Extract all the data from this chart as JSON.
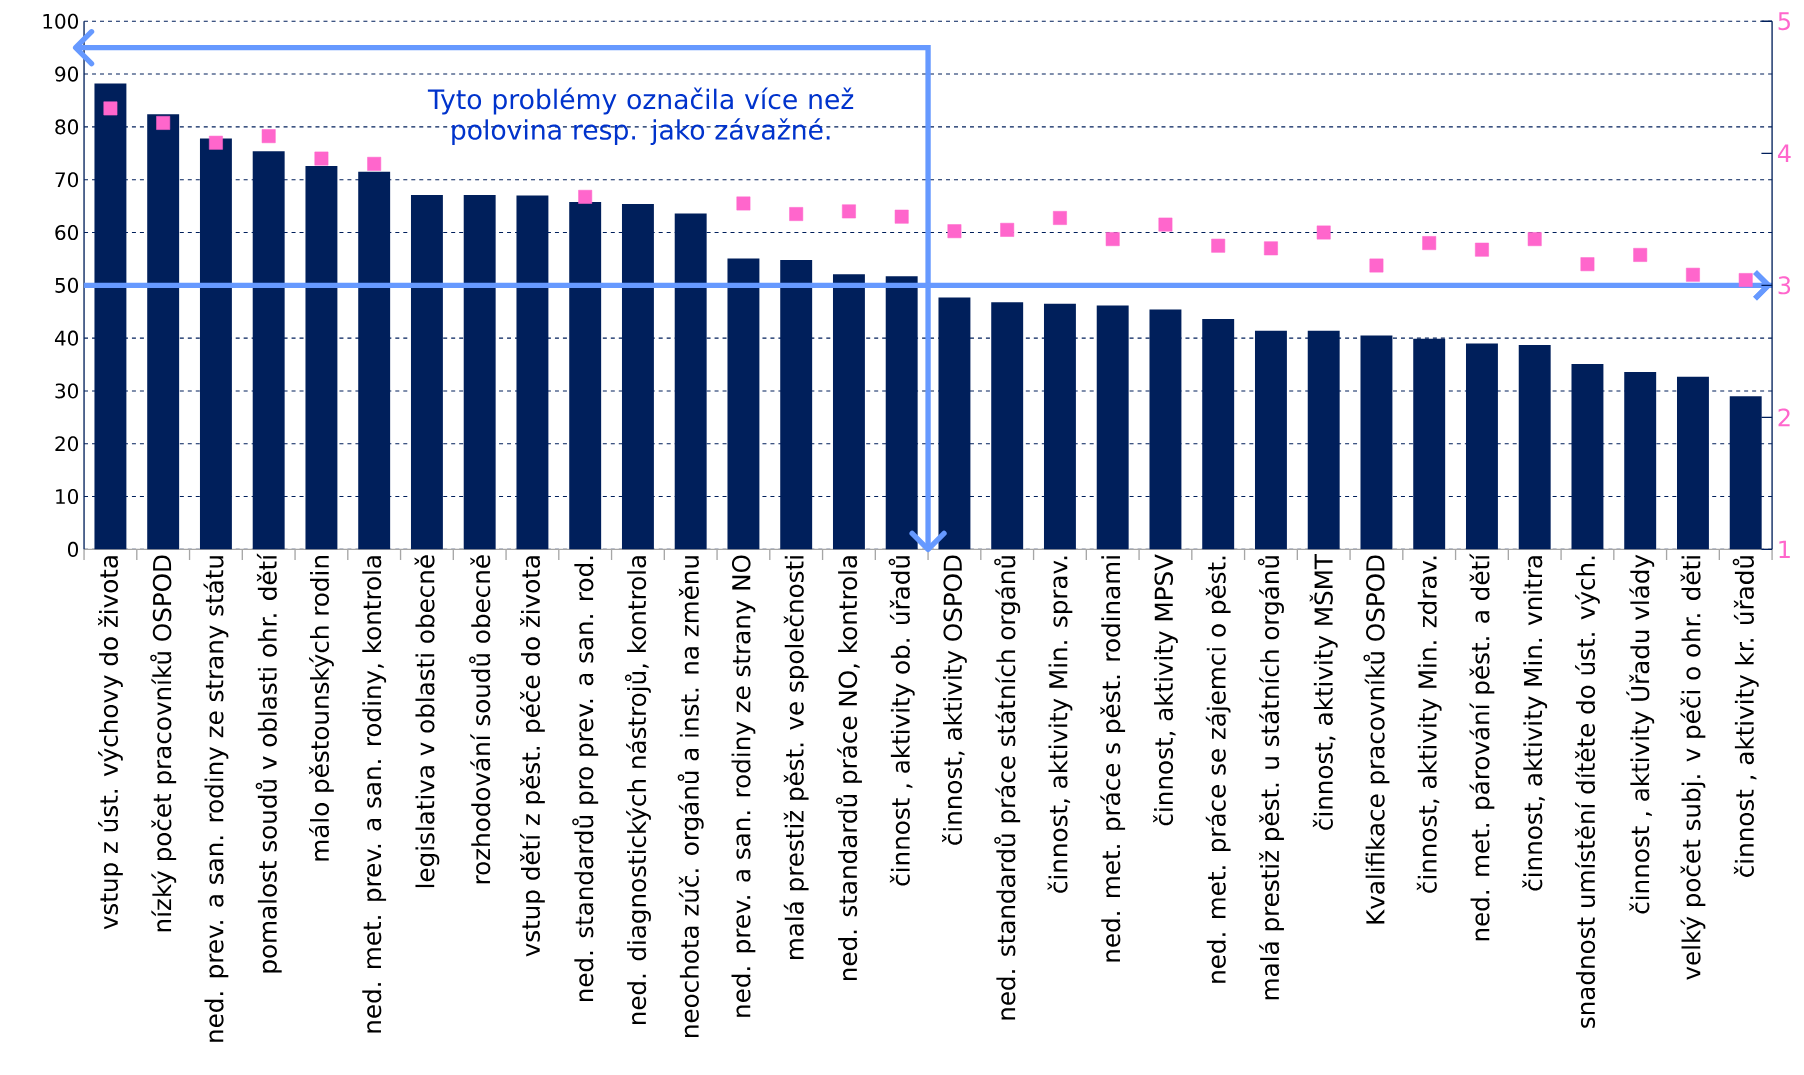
{
  "chart_data": {
    "type": "bar",
    "categories": [
      "vstup z úst. výchovy do života",
      "nízký počet pracovníků OSPOD",
      "ned. prev. a san. rodiny ze strany státu",
      "pomalost soudů v oblasti ohr. dětí",
      "málo pěstounských rodin",
      "ned. met. prev. a san. rodiny, kontrola",
      "legislativa v oblasti obecně",
      "rozhodování soudů obecně",
      "vstup dětí z pěst. péče do života",
      "ned. standardů pro prev. a san. rod.",
      "ned. diagnostických nástrojů, kontrola",
      "neochota zúč. orgánů a inst. na změnu",
      "ned. prev. a san. rodiny ze strany NO",
      "malá prestiž pěst. ve společnosti",
      "ned. standardů práce NO, kontrola",
      "činnost , aktivity ob. úřadů",
      "činnost, aktivity OSPOD",
      "ned. standardů práce státních orgánů",
      "činnost, aktivity Min. sprav.",
      "ned. met. práce s pěst. rodinami",
      "činnost, aktivity MPSV",
      "ned. met. práce se zájemci o pěst.",
      "malá prestiž pěst. u státních orgánů",
      "činnost, aktivity MŠMT",
      "Kvalifikace pracovníků OSPOD",
      "činnost, aktivity Min. zdrav.",
      "ned. met. párování pěst. a dětí",
      "činnost, aktivity Min. vnitra",
      "snadnost umístění dítěte do úst. vých.",
      "činnost , aktivity Úřadu vlády",
      "velký počet subj. v péči o ohr. děti",
      "činnost , aktivity kr. úřadů"
    ],
    "series": [
      {
        "color": "#001f5b",
        "values": [
          88.2,
          82.4,
          77.8,
          75.4,
          72.6,
          71.5,
          67.1,
          67.1,
          67.0,
          65.8,
          65.4,
          63.6,
          55.1,
          54.8,
          52.1,
          51.7,
          47.7,
          46.8,
          46.5,
          46.2,
          45.4,
          43.6,
          41.4,
          41.4,
          40.5,
          39.9,
          39.0,
          38.7,
          35.1,
          33.6,
          32.7,
          29.0
        ]
      },
      {
        "type": "scatter",
        "axis": "y2",
        "color": "#ff66cc",
        "values": [
          4.34,
          4.23,
          4.08,
          4.13,
          3.96,
          3.92,
          null,
          null,
          null,
          3.67,
          null,
          null,
          3.62,
          3.54,
          3.56,
          3.52,
          3.41,
          3.42,
          3.51,
          3.35,
          3.46,
          3.3,
          3.28,
          3.4,
          3.15,
          3.32,
          3.27,
          3.35,
          3.16,
          3.23,
          3.08,
          3.04
        ]
      }
    ],
    "ylim": [
      0,
      100
    ],
    "yticks": [
      0,
      10,
      20,
      30,
      40,
      50,
      60,
      70,
      80,
      90,
      100
    ],
    "y2lim": [
      1,
      5
    ],
    "y2ticks": [
      1,
      2,
      3,
      4,
      5
    ],
    "grid": "y",
    "marker": "square",
    "ref_lines": [
      {
        "axis": "y",
        "value": 50,
        "color": "#6699ff"
      }
    ],
    "annotations": [
      "Tyto problémy označila více než polovina resp. jako závažné."
    ]
  }
}
